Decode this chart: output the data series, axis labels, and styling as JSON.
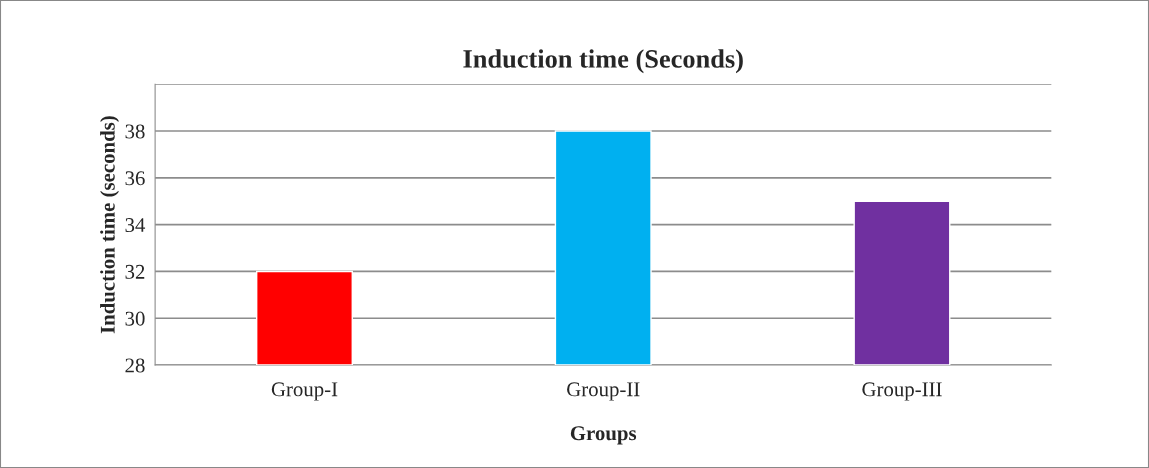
{
  "chart_data": {
    "type": "bar",
    "title": "Induction time (Seconds)",
    "xlabel": "Groups",
    "ylabel": "Induction time (seconds)",
    "categories": [
      "Group-I",
      "Group-II",
      "Group-III"
    ],
    "values": [
      32,
      38,
      35
    ],
    "colors": [
      "#ff0000",
      "#00b0f0",
      "#7030a0"
    ],
    "ylim": [
      28,
      40
    ],
    "yticks": [
      28,
      30,
      32,
      34,
      36,
      38,
      {
        "value": 40,
        "label": null
      }
    ],
    "grid": "y",
    "legend": false
  }
}
